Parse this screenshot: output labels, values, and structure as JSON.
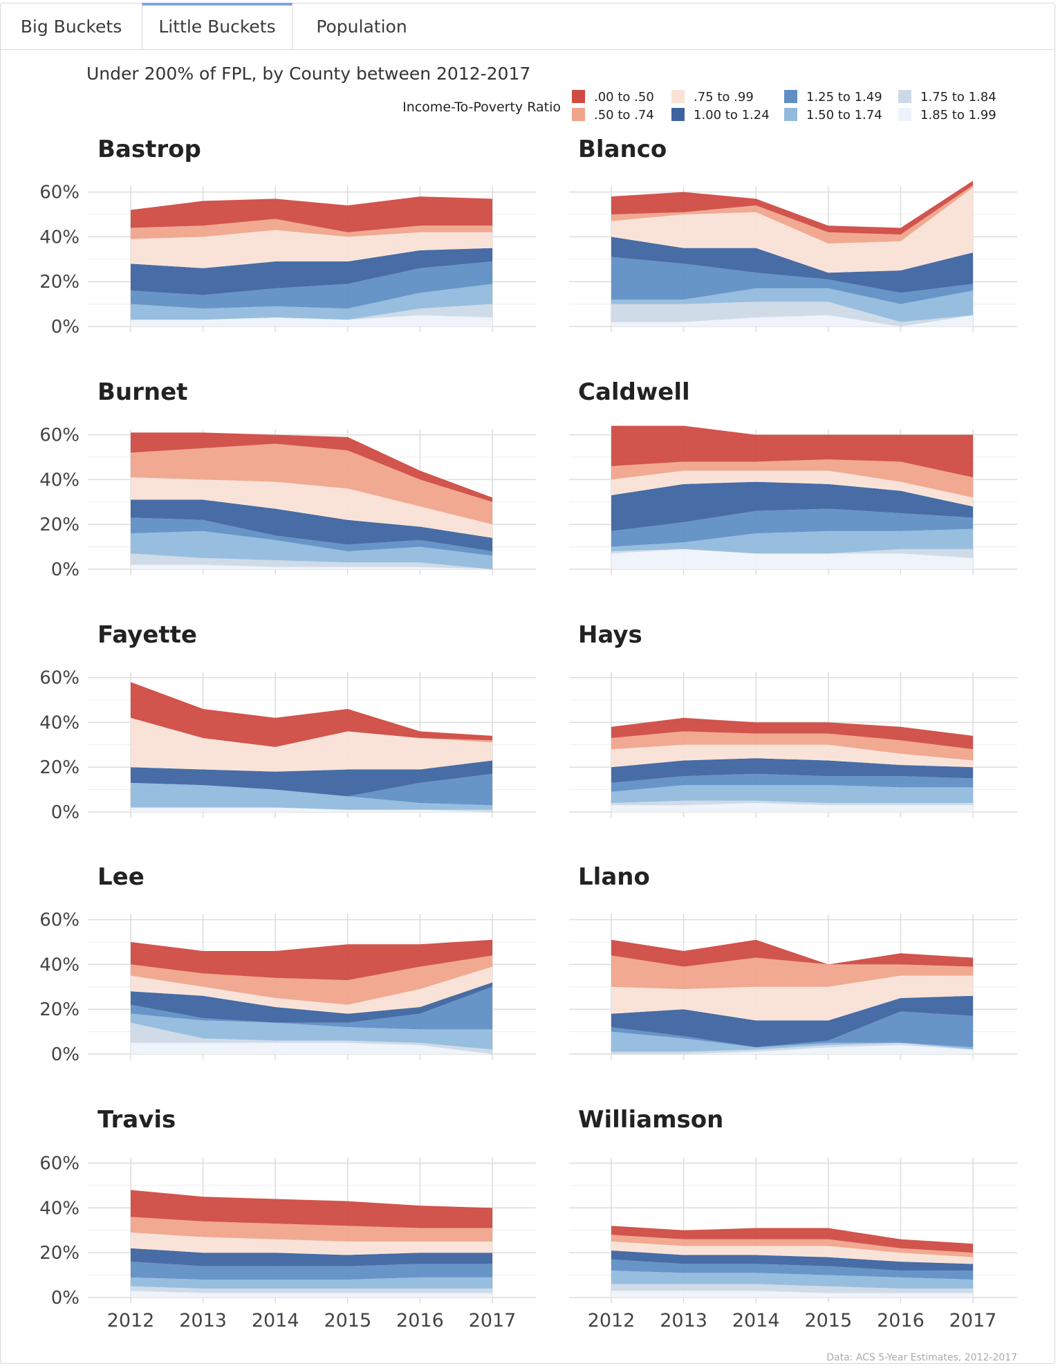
{
  "tabs": [
    {
      "label": "Big Buckets"
    },
    {
      "label": "Little Buckets"
    },
    {
      "label": "Population"
    }
  ],
  "chart_data": {
    "type": "area",
    "title": "Under 200% of FPL, by County between 2012-2017",
    "legend_title": "Income-To-Poverty Ratio",
    "legend_position": "top-right",
    "caption": "Data: ACS 5-Year Estimates, 2012-2017",
    "x": [
      2012,
      2013,
      2014,
      2015,
      2016,
      2017
    ],
    "ylim": [
      0,
      60
    ],
    "yticks": [
      "0%",
      "20%",
      "40%",
      "60%"
    ],
    "grid": true,
    "series": [
      {
        "name": ".00 to .50",
        "color": "#cf4b43"
      },
      {
        "name": ".50 to .74",
        "color": "#f0a48c"
      },
      {
        "name": ".75 to .99",
        "color": "#f9e2d6"
      },
      {
        "name": "1.00 to 1.24",
        "color": "#3e64a0"
      },
      {
        "name": "1.25 to 1.49",
        "color": "#5f8fc5"
      },
      {
        "name": "1.50 to 1.74",
        "color": "#91badd"
      },
      {
        "name": "1.75 to 1.84",
        "color": "#cdd9e7"
      },
      {
        "name": "1.85 to 1.99",
        "color": "#eef2fa"
      }
    ],
    "stack_order_bottom_to_top": [
      "1.85 to 1.99",
      "1.75 to 1.84",
      "1.50 to 1.74",
      "1.25 to 1.49",
      "1.00 to 1.24",
      ".75 to .99",
      ".50 to .74",
      ".00 to .50"
    ],
    "panels": [
      {
        "name": "Bastrop",
        "cumulative_tops": [
          [
            3,
            3,
            4,
            3,
            5,
            4
          ],
          [
            3,
            3,
            4,
            3,
            8,
            10
          ],
          [
            10,
            8,
            9,
            8,
            15,
            19
          ],
          [
            16,
            14,
            17,
            19,
            26,
            29
          ],
          [
            28,
            26,
            29,
            29,
            34,
            35
          ],
          [
            39,
            40,
            43,
            40,
            42,
            42
          ],
          [
            44,
            45,
            48,
            42,
            45,
            45
          ],
          [
            52,
            56,
            57,
            54,
            58,
            57
          ]
        ]
      },
      {
        "name": "Blanco",
        "cumulative_tops": [
          [
            2,
            2,
            4,
            5,
            0,
            5
          ],
          [
            10,
            10,
            11,
            11,
            2,
            5
          ],
          [
            12,
            12,
            17,
            17,
            10,
            16
          ],
          [
            31,
            28,
            24,
            21,
            15,
            19
          ],
          [
            40,
            35,
            35,
            24,
            25,
            33
          ],
          [
            47,
            50,
            51,
            37,
            38,
            62
          ],
          [
            50,
            51,
            54,
            42,
            41,
            63
          ],
          [
            58,
            60,
            57,
            45,
            44,
            65
          ]
        ]
      },
      {
        "name": "Burnet",
        "cumulative_tops": [
          [
            2,
            2,
            1,
            1,
            1,
            0
          ],
          [
            7,
            5,
            4,
            3,
            3,
            0
          ],
          [
            16,
            17,
            13,
            8,
            10,
            6
          ],
          [
            23,
            22,
            15,
            11,
            13,
            8
          ],
          [
            31,
            31,
            27,
            22,
            19,
            14
          ],
          [
            41,
            40,
            39,
            36,
            28,
            20
          ],
          [
            52,
            54,
            56,
            53,
            40,
            30
          ],
          [
            61,
            61,
            60,
            59,
            44,
            32
          ]
        ]
      },
      {
        "name": "Caldwell",
        "cumulative_tops": [
          [
            7,
            9,
            7,
            7,
            7,
            5
          ],
          [
            8,
            9,
            7,
            7,
            9,
            9
          ],
          [
            10,
            12,
            16,
            17,
            17,
            18
          ],
          [
            17,
            21,
            26,
            27,
            25,
            23
          ],
          [
            33,
            38,
            39,
            38,
            35,
            28
          ],
          [
            40,
            44,
            44,
            44,
            39,
            32
          ],
          [
            46,
            48,
            48,
            49,
            48,
            41
          ],
          [
            64,
            64,
            60,
            60,
            60,
            60
          ]
        ]
      },
      {
        "name": "Fayette",
        "cumulative_tops": [
          [
            2,
            2,
            2,
            1,
            1,
            0
          ],
          [
            2,
            2,
            2,
            1,
            1,
            1
          ],
          [
            13,
            12,
            10,
            7,
            4,
            3
          ],
          [
            13,
            12,
            10,
            7,
            13,
            17
          ],
          [
            20,
            19,
            18,
            19,
            19,
            23
          ],
          [
            42,
            33,
            29,
            36,
            33,
            31
          ],
          [
            42,
            33,
            29,
            36,
            33,
            32
          ],
          [
            58,
            46,
            42,
            46,
            36,
            34
          ]
        ]
      },
      {
        "name": "Hays",
        "cumulative_tops": [
          [
            3,
            3,
            4,
            3,
            3,
            3
          ],
          [
            4,
            5,
            5,
            4,
            4,
            4
          ],
          [
            9,
            12,
            12,
            12,
            11,
            11
          ],
          [
            13,
            16,
            17,
            16,
            16,
            15
          ],
          [
            20,
            23,
            24,
            23,
            21,
            20
          ],
          [
            28,
            30,
            30,
            30,
            26,
            23
          ],
          [
            33,
            36,
            35,
            35,
            32,
            28
          ],
          [
            38,
            42,
            40,
            40,
            38,
            34
          ]
        ]
      },
      {
        "name": "Lee",
        "cumulative_tops": [
          [
            5,
            5,
            5,
            5,
            4,
            0
          ],
          [
            14,
            7,
            6,
            6,
            5,
            2
          ],
          [
            18,
            15,
            14,
            12,
            11,
            11
          ],
          [
            22,
            16,
            14,
            14,
            18,
            30
          ],
          [
            28,
            26,
            21,
            18,
            21,
            32
          ],
          [
            35,
            30,
            25,
            22,
            29,
            39
          ],
          [
            40,
            36,
            34,
            33,
            39,
            44
          ],
          [
            50,
            46,
            46,
            49,
            49,
            51
          ]
        ]
      },
      {
        "name": "Llano",
        "cumulative_tops": [
          [
            0,
            0,
            1,
            3,
            4,
            2
          ],
          [
            1,
            1,
            2,
            4,
            5,
            2
          ],
          [
            10,
            7,
            3,
            5,
            5,
            3
          ],
          [
            12,
            8,
            3,
            6,
            19,
            17
          ],
          [
            18,
            20,
            15,
            15,
            25,
            26
          ],
          [
            30,
            29,
            30,
            30,
            35,
            35
          ],
          [
            44,
            39,
            43,
            40,
            40,
            39
          ],
          [
            51,
            46,
            51,
            40,
            45,
            43
          ]
        ]
      },
      {
        "name": "Travis",
        "cumulative_tops": [
          [
            3,
            2,
            2,
            2,
            2,
            2
          ],
          [
            5,
            4,
            4,
            4,
            4,
            4
          ],
          [
            9,
            8,
            8,
            8,
            9,
            9
          ],
          [
            16,
            14,
            14,
            14,
            15,
            15
          ],
          [
            22,
            20,
            20,
            19,
            20,
            20
          ],
          [
            29,
            27,
            26,
            25,
            25,
            25
          ],
          [
            36,
            34,
            33,
            32,
            31,
            31
          ],
          [
            48,
            45,
            44,
            43,
            41,
            40
          ]
        ]
      },
      {
        "name": "Williamson",
        "cumulative_tops": [
          [
            3,
            3,
            3,
            2,
            2,
            2
          ],
          [
            6,
            6,
            6,
            5,
            4,
            4
          ],
          [
            12,
            11,
            11,
            10,
            9,
            8
          ],
          [
            17,
            15,
            15,
            14,
            12,
            12
          ],
          [
            21,
            19,
            19,
            18,
            16,
            15
          ],
          [
            25,
            23,
            23,
            23,
            20,
            18
          ],
          [
            28,
            26,
            26,
            26,
            22,
            20
          ],
          [
            32,
            30,
            31,
            31,
            26,
            24
          ]
        ]
      }
    ]
  }
}
